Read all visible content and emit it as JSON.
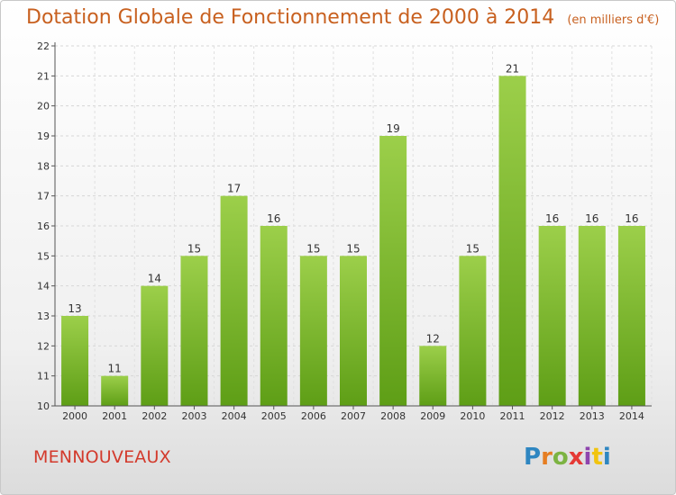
{
  "header": {
    "title": "Dotation Globale de Fonctionnement de 2000 à 2014",
    "unit": "(en milliers d'€)"
  },
  "commune": "MENNOUVEAUX",
  "logo": {
    "letters": [
      "P",
      "r",
      "o",
      "x",
      "i",
      "t",
      "i"
    ],
    "colors": [
      "#2e86c1",
      "#e67e22",
      "#7cb342",
      "#e53935",
      "#8e44ad",
      "#f1c40f",
      "#2e86c1"
    ]
  },
  "chart_data": {
    "type": "bar",
    "categories": [
      "2000",
      "2001",
      "2002",
      "2003",
      "2004",
      "2005",
      "2006",
      "2007",
      "2008",
      "2009",
      "2010",
      "2011",
      "2012",
      "2013",
      "2014"
    ],
    "values": [
      13,
      11,
      14,
      15,
      17,
      16,
      15,
      15,
      19,
      12,
      15,
      21,
      16,
      16,
      16
    ],
    "data_labels": [
      "13",
      "11",
      "14",
      "15",
      "17",
      "16",
      "15",
      "15",
      "19",
      "12",
      "15",
      "21",
      "16",
      "16",
      "16"
    ],
    "ylim": [
      10,
      22
    ],
    "yticks": [
      10,
      11,
      12,
      13,
      14,
      15,
      16,
      17,
      18,
      19,
      20,
      21,
      22
    ],
    "grid": true,
    "bar_color_top": "#9ccf4a",
    "bar_color_bottom": "#5e9e16"
  }
}
